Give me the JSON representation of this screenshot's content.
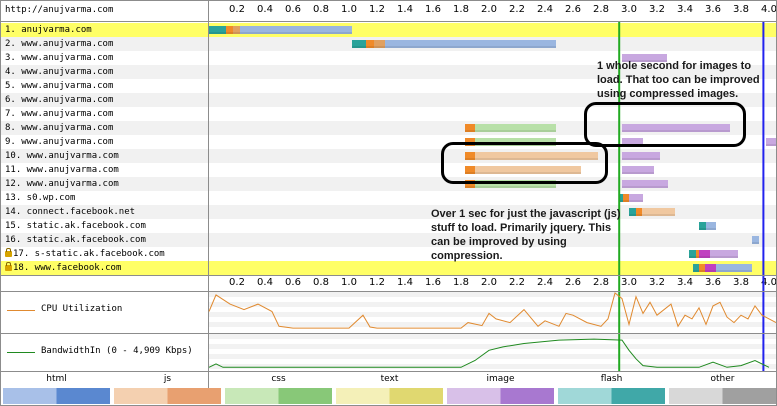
{
  "page": {
    "url": "http://anujvarma.com"
  },
  "axis": {
    "ticks": [
      "0.2",
      "0.4",
      "0.6",
      "0.8",
      "1.0",
      "1.2",
      "1.4",
      "1.6",
      "1.8",
      "2.0",
      "2.2",
      "2.4",
      "2.6",
      "2.8",
      "3.0",
      "3.2",
      "3.4",
      "3.6",
      "3.8",
      "4.0"
    ],
    "max_seconds": 4.05
  },
  "colors": {
    "html": "#9ab6e0",
    "js": "#f0c8a0",
    "css": "#b8e0a8",
    "text": "#f0f0a8",
    "image": "#c8a8e0",
    "flash": "#80c8c8",
    "other": "#c8c8c8",
    "dns": "#2aa39a",
    "connect": "#f08a28",
    "ssl": "#c040c0",
    "ttfb": "#e0a060",
    "start_render": "#22aa22",
    "doc_complete": "#2222ee",
    "cpu": "#e08a30",
    "bandwidth": "#208a20"
  },
  "requests": [
    {
      "label": "1. anujvarma.com",
      "secure": false,
      "highlight": true,
      "bars": [
        [
          0.0,
          0.12,
          "dns"
        ],
        [
          0.12,
          0.17,
          "connect"
        ],
        [
          0.17,
          0.22,
          "ttfb"
        ],
        [
          0.22,
          1.02,
          "html"
        ]
      ]
    },
    {
      "label": "2. www.anujvarma.com",
      "secure": false,
      "highlight": false,
      "bars": [
        [
          1.02,
          1.12,
          "dns"
        ],
        [
          1.12,
          1.18,
          "connect"
        ],
        [
          1.18,
          1.26,
          "ttfb"
        ],
        [
          1.26,
          2.48,
          "html"
        ]
      ]
    },
    {
      "label": "3. www.anujvarma.com",
      "secure": false,
      "highlight": false,
      "bars": [
        [
          2.95,
          3.27,
          "image"
        ]
      ]
    },
    {
      "label": "4. www.anujvarma.com",
      "secure": false,
      "highlight": false,
      "bars": []
    },
    {
      "label": "5. www.anujvarma.com",
      "secure": false,
      "highlight": false,
      "bars": []
    },
    {
      "label": "6. www.anujvarma.com",
      "secure": false,
      "highlight": false,
      "bars": []
    },
    {
      "label": "7. www.anujvarma.com",
      "secure": false,
      "highlight": false,
      "bars": []
    },
    {
      "label": "8. www.anujvarma.com",
      "secure": false,
      "highlight": false,
      "bars": [
        [
          1.83,
          1.9,
          "connect"
        ],
        [
          1.9,
          2.48,
          "css"
        ],
        [
          2.95,
          3.72,
          "image"
        ]
      ]
    },
    {
      "label": "9. www.anujvarma.com",
      "secure": false,
      "highlight": false,
      "bars": [
        [
          1.83,
          1.9,
          "connect"
        ],
        [
          1.9,
          2.48,
          "css"
        ],
        [
          2.95,
          3.1,
          "image"
        ],
        [
          3.98,
          4.05,
          "image"
        ]
      ]
    },
    {
      "label": "10. www.anujvarma.com",
      "secure": false,
      "highlight": false,
      "bars": [
        [
          1.83,
          1.9,
          "connect"
        ],
        [
          1.9,
          2.78,
          "js"
        ],
        [
          2.95,
          3.22,
          "image"
        ]
      ]
    },
    {
      "label": "11. www.anujvarma.com",
      "secure": false,
      "highlight": false,
      "bars": [
        [
          1.83,
          1.9,
          "connect"
        ],
        [
          1.9,
          2.66,
          "js"
        ],
        [
          2.95,
          3.18,
          "image"
        ]
      ]
    },
    {
      "label": "12. www.anujvarma.com",
      "secure": false,
      "highlight": false,
      "bars": [
        [
          1.83,
          1.9,
          "connect"
        ],
        [
          1.9,
          2.48,
          "css"
        ],
        [
          2.95,
          3.28,
          "image"
        ]
      ]
    },
    {
      "label": "13. s0.wp.com",
      "secure": false,
      "highlight": false,
      "bars": [
        [
          2.93,
          2.96,
          "dns"
        ],
        [
          2.96,
          3.0,
          "connect"
        ],
        [
          3.0,
          3.1,
          "image"
        ]
      ]
    },
    {
      "label": "14. connect.facebook.net",
      "secure": false,
      "highlight": false,
      "bars": [
        [
          3.0,
          3.05,
          "dns"
        ],
        [
          3.05,
          3.09,
          "connect"
        ],
        [
          3.09,
          3.33,
          "js"
        ]
      ]
    },
    {
      "label": "15. static.ak.facebook.com",
      "secure": false,
      "highlight": false,
      "bars": [
        [
          3.5,
          3.55,
          "dns"
        ],
        [
          3.55,
          3.62,
          "html"
        ]
      ]
    },
    {
      "label": "16. static.ak.facebook.com",
      "secure": false,
      "highlight": false,
      "bars": [
        [
          3.88,
          3.93,
          "html"
        ]
      ]
    },
    {
      "label": "17. s-static.ak.facebook.com",
      "secure": true,
      "highlight": false,
      "bars": [
        [
          3.43,
          3.48,
          "dns"
        ],
        [
          3.48,
          3.5,
          "connect"
        ],
        [
          3.5,
          3.58,
          "ssl"
        ],
        [
          3.58,
          3.78,
          "image"
        ]
      ]
    },
    {
      "label": "18. www.facebook.com",
      "secure": true,
      "highlight": true,
      "bars": [
        [
          3.46,
          3.5,
          "dns"
        ],
        [
          3.5,
          3.54,
          "connect"
        ],
        [
          3.54,
          3.62,
          "ssl"
        ],
        [
          3.62,
          3.88,
          "html"
        ]
      ]
    }
  ],
  "markers": {
    "start_render": 2.93,
    "doc_complete": 3.96
  },
  "cpu": {
    "label": "CPU Utilization",
    "points": [
      [
        0,
        50
      ],
      [
        0.05,
        95
      ],
      [
        0.15,
        70
      ],
      [
        0.25,
        55
      ],
      [
        0.35,
        70
      ],
      [
        0.45,
        50
      ],
      [
        0.5,
        10
      ],
      [
        0.6,
        5
      ],
      [
        1.0,
        5
      ],
      [
        1.1,
        40
      ],
      [
        1.15,
        8
      ],
      [
        1.2,
        5
      ],
      [
        1.8,
        5
      ],
      [
        1.85,
        20
      ],
      [
        1.95,
        12
      ],
      [
        2.0,
        45
      ],
      [
        2.05,
        30
      ],
      [
        2.15,
        20
      ],
      [
        2.25,
        55
      ],
      [
        2.35,
        10
      ],
      [
        2.4,
        25
      ],
      [
        2.5,
        10
      ],
      [
        2.55,
        45
      ],
      [
        2.6,
        40
      ],
      [
        2.7,
        20
      ],
      [
        2.8,
        10
      ],
      [
        2.85,
        30
      ],
      [
        2.9,
        100
      ],
      [
        2.95,
        85
      ],
      [
        3.0,
        15
      ],
      [
        3.05,
        90
      ],
      [
        3.1,
        45
      ],
      [
        3.15,
        75
      ],
      [
        3.2,
        40
      ],
      [
        3.3,
        70
      ],
      [
        3.35,
        10
      ],
      [
        3.4,
        40
      ],
      [
        3.45,
        30
      ],
      [
        3.5,
        60
      ],
      [
        3.55,
        15
      ],
      [
        3.6,
        65
      ],
      [
        3.65,
        75
      ],
      [
        3.7,
        35
      ],
      [
        3.75,
        20
      ],
      [
        3.8,
        40
      ],
      [
        3.85,
        30
      ],
      [
        3.9,
        65
      ],
      [
        3.95,
        40
      ],
      [
        4.05,
        20
      ]
    ]
  },
  "bandwidth": {
    "label": "BandwidthIn (0 - 4,909 Kbps)",
    "points": [
      [
        0,
        5
      ],
      [
        0.05,
        15
      ],
      [
        0.1,
        5
      ],
      [
        1.8,
        5
      ],
      [
        1.9,
        25
      ],
      [
        2.0,
        55
      ],
      [
        2.1,
        65
      ],
      [
        2.25,
        75
      ],
      [
        2.5,
        85
      ],
      [
        2.75,
        88
      ],
      [
        2.95,
        85
      ],
      [
        3.0,
        55
      ],
      [
        3.05,
        30
      ],
      [
        3.1,
        10
      ],
      [
        3.2,
        5
      ],
      [
        3.5,
        5
      ],
      [
        3.6,
        20
      ],
      [
        3.7,
        5
      ],
      [
        3.8,
        10
      ],
      [
        3.9,
        25
      ],
      [
        4.0,
        5
      ]
    ]
  },
  "annotations": [
    {
      "text": "1 whole second for images to load. That too can be improved using compressed images."
    },
    {
      "text": "Over 1 sec for just the javascript (js) stuff to load. Primarily jquery. This can be improved by using compression."
    }
  ],
  "legend": [
    {
      "label": "html",
      "light": "#a8c0e8",
      "dark": "#5a88d0"
    },
    {
      "label": "js",
      "light": "#f4d0b0",
      "dark": "#e8a070"
    },
    {
      "label": "css",
      "light": "#c8e8b8",
      "dark": "#88c878"
    },
    {
      "label": "text",
      "light": "#f4f0b8",
      "dark": "#e0d870"
    },
    {
      "label": "image",
      "light": "#d8c0e8",
      "dark": "#a878d0"
    },
    {
      "label": "flash",
      "light": "#a0d8d8",
      "dark": "#40a8a8"
    },
    {
      "label": "other",
      "light": "#d8d8d8",
      "dark": "#a0a0a0"
    }
  ]
}
